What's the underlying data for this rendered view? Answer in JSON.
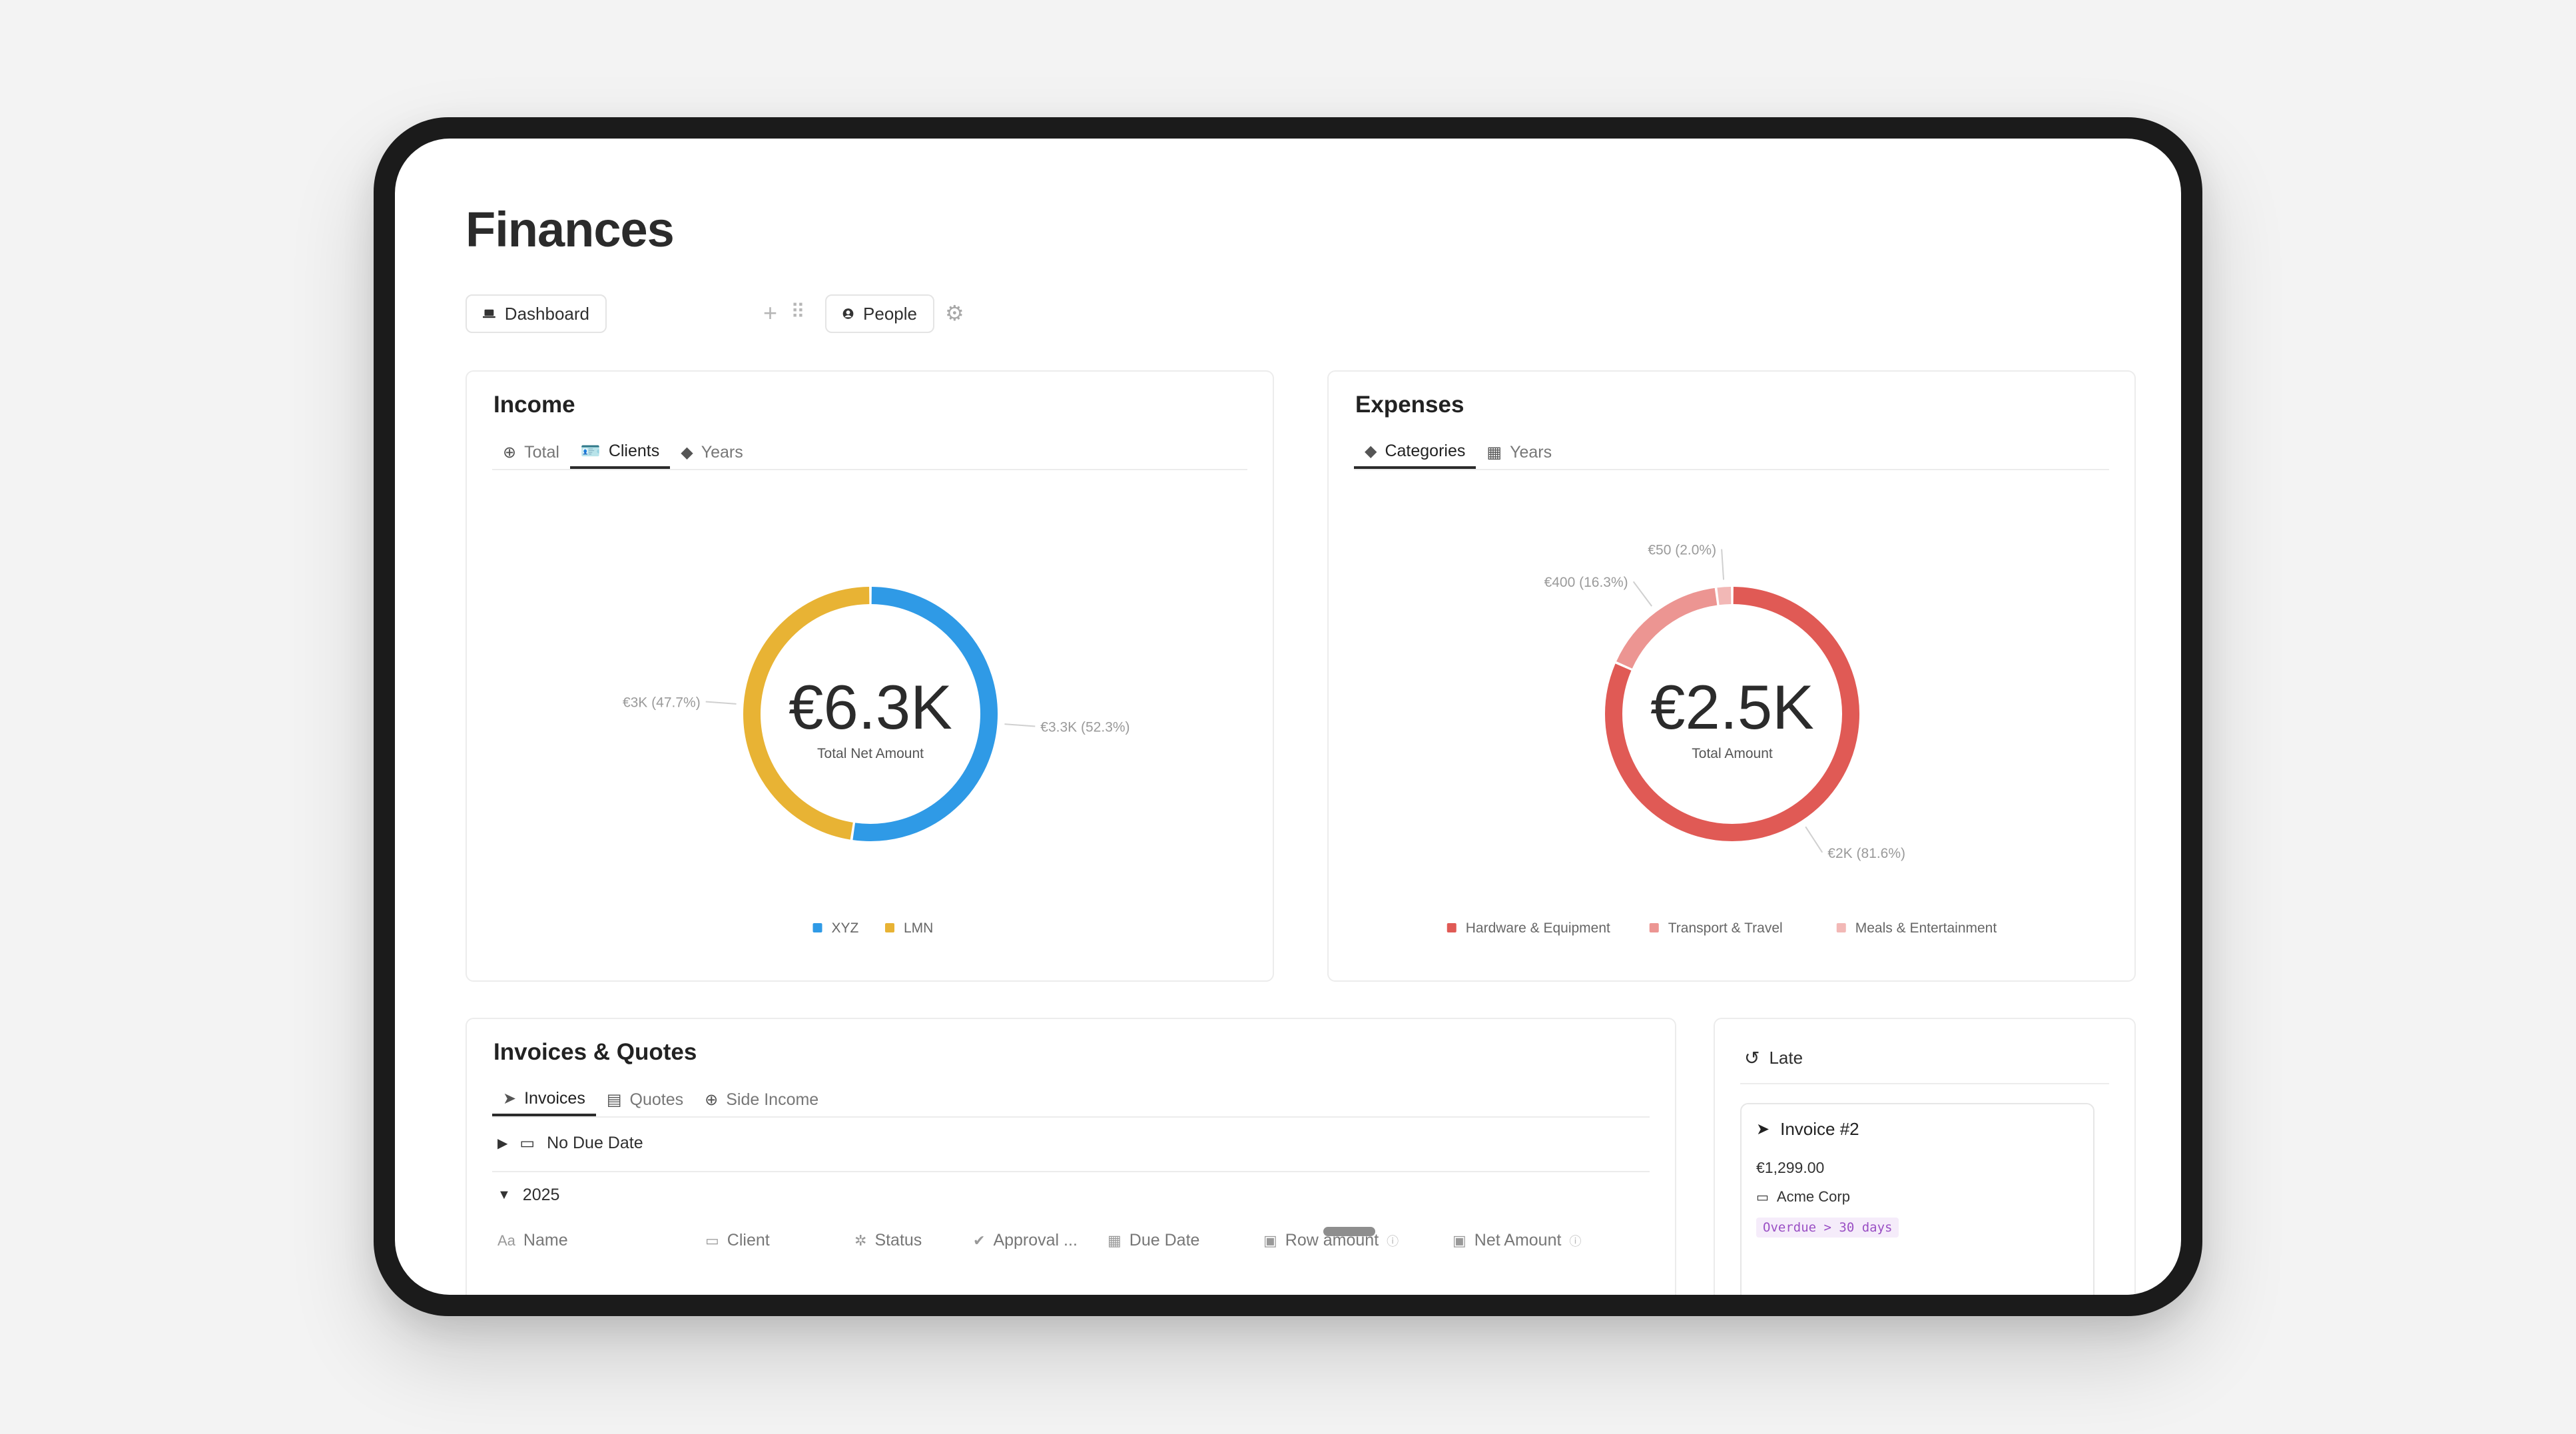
{
  "page": {
    "title": "Finances"
  },
  "views": {
    "dashboard_label": "Dashboard",
    "people_label": "People"
  },
  "income": {
    "title": "Income",
    "tabs": [
      {
        "label": "Total",
        "icon": "plus-circle-icon"
      },
      {
        "label": "Clients",
        "icon": "id-card-icon"
      },
      {
        "label": "Years",
        "icon": "shapes-icon"
      }
    ],
    "active_tab": "Clients"
  },
  "expenses": {
    "title": "Expenses",
    "tabs": [
      {
        "label": "Categories",
        "icon": "shapes-icon"
      },
      {
        "label": "Years",
        "icon": "calendar-icon"
      }
    ],
    "active_tab": "Categories"
  },
  "chart_data": [
    {
      "type": "pie",
      "center_value": "€6.3K",
      "center_label": "Total Net Amount",
      "categories": [
        "XYZ",
        "LMN"
      ],
      "values": [
        3.3,
        3.0
      ],
      "percents": [
        52.3,
        47.7
      ],
      "labels": [
        "€3.3K (52.3%)",
        "€3K (47.7%)"
      ],
      "colors": [
        "#2f9ae6",
        "#e8b334"
      ],
      "legend": "bottom"
    },
    {
      "type": "pie",
      "center_value": "€2.5K",
      "center_label": "Total Amount",
      "categories": [
        "Hardware & Equipment",
        "Transport & Travel",
        "Meals & Entertainment"
      ],
      "values": [
        2000,
        400,
        50
      ],
      "percents": [
        81.6,
        16.3,
        2.0
      ],
      "labels": [
        "€2K (81.6%)",
        "€400 (16.3%)",
        "€50 (2.0%)"
      ],
      "colors": [
        "#e05a55",
        "#ec9592",
        "#f2b8b6"
      ],
      "legend": "bottom"
    }
  ],
  "invoices": {
    "title": "Invoices & Quotes",
    "tabs": [
      {
        "label": "Invoices",
        "icon": "send-icon"
      },
      {
        "label": "Quotes",
        "icon": "receipt-icon"
      },
      {
        "label": "Side Income",
        "icon": "plus-circle-icon"
      }
    ],
    "active_tab": "Invoices",
    "groups": [
      {
        "label": "No Due Date",
        "collapsed": true
      },
      {
        "label": "2025",
        "collapsed": false
      }
    ],
    "columns": [
      {
        "label": "Name",
        "icon": "Aa"
      },
      {
        "label": "Client",
        "icon": "id-card-icon"
      },
      {
        "label": "Status",
        "icon": "spinner-icon"
      },
      {
        "label": "Approval ...",
        "icon": "check-circle-icon"
      },
      {
        "label": "Due Date",
        "icon": "calendar-icon"
      },
      {
        "label": "Row amount",
        "icon": "money-icon"
      },
      {
        "label": "Net Amount",
        "icon": "money-icon"
      }
    ]
  },
  "late": {
    "title": "Late",
    "item": {
      "title": "Invoice #2",
      "amount": "€1,299.00",
      "client": "Acme Corp",
      "badge": "Overdue > 30 days"
    }
  }
}
